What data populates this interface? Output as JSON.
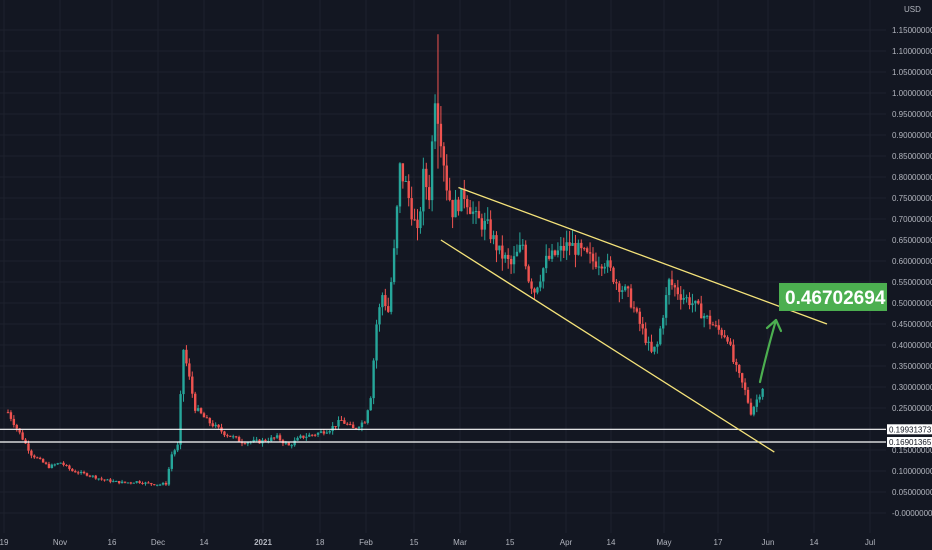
{
  "chart_data": {
    "type": "candlestick",
    "currency": "USD",
    "y_ticks": [
      "1.15000000",
      "1.10000000",
      "1.05000000",
      "1.00000000",
      "0.95000000",
      "0.90000000",
      "0.85000000",
      "0.80000000",
      "0.75000000",
      "0.70000000",
      "0.65000000",
      "0.60000000",
      "0.55000000",
      "0.50000000",
      "0.45000000",
      "0.40000000",
      "0.35000000",
      "0.30000000",
      "0.25000000",
      "0.15000000",
      "0.10000000",
      "0.05000000",
      "-0.00000000"
    ],
    "x_ticks": [
      "19",
      "Nov",
      "16",
      "Dec",
      "14",
      "2021",
      "18",
      "Feb",
      "15",
      "Mar",
      "15",
      "Apr",
      "14",
      "May",
      "17",
      "Jun",
      "14",
      "Jul"
    ],
    "ylim": [
      -0.01,
      1.21
    ],
    "horizontal_levels": [
      {
        "value": 0.19931373,
        "label": "0.19931373"
      },
      {
        "value": 0.16901365,
        "label": "0.16901365"
      }
    ],
    "annotation": {
      "label": "0.46702694",
      "value": 0.46702694
    },
    "colors": {
      "up": "#26a69a",
      "down": "#ef5350",
      "trendline": "#f5e37a",
      "annotation": "#4caf50",
      "level": "#ffffff",
      "background": "#131722",
      "grid": "#1e222d"
    },
    "price_path": [
      [
        0,
        0.24
      ],
      [
        2,
        0.19
      ],
      [
        4,
        0.14
      ],
      [
        7,
        0.11
      ],
      [
        9,
        0.12
      ],
      [
        11,
        0.1
      ],
      [
        14,
        0.09
      ],
      [
        16,
        0.08
      ],
      [
        18,
        0.075
      ],
      [
        20,
        0.072
      ],
      [
        22,
        0.075
      ],
      [
        24,
        0.07
      ],
      [
        26,
        0.068
      ],
      [
        27,
        0.07
      ],
      [
        28,
        0.14
      ],
      [
        29,
        0.16
      ],
      [
        30,
        0.39
      ],
      [
        32,
        0.25
      ],
      [
        34,
        0.22
      ],
      [
        37,
        0.19
      ],
      [
        40,
        0.17
      ],
      [
        43,
        0.17
      ],
      [
        46,
        0.18
      ],
      [
        48,
        0.16
      ],
      [
        50,
        0.18
      ],
      [
        53,
        0.19
      ],
      [
        55,
        0.2
      ],
      [
        57,
        0.22
      ],
      [
        59,
        0.2
      ],
      [
        61,
        0.22
      ],
      [
        62,
        0.28
      ],
      [
        63,
        0.45
      ],
      [
        64,
        0.52
      ],
      [
        65,
        0.48
      ],
      [
        66,
        0.62
      ],
      [
        67,
        0.82
      ],
      [
        68,
        0.78
      ],
      [
        69,
        0.72
      ],
      [
        70,
        0.66
      ],
      [
        71,
        0.8
      ],
      [
        72,
        0.76
      ],
      [
        73,
        1.0
      ],
      [
        74,
        0.9
      ],
      [
        75,
        0.78
      ],
      [
        76,
        0.72
      ],
      [
        78,
        0.76
      ],
      [
        80,
        0.7
      ],
      [
        82,
        0.68
      ],
      [
        84,
        0.62
      ],
      [
        86,
        0.59
      ],
      [
        88,
        0.64
      ],
      [
        89,
        0.56
      ],
      [
        90,
        0.53
      ],
      [
        92,
        0.6
      ],
      [
        94,
        0.62
      ],
      [
        96,
        0.64
      ],
      [
        98,
        0.62
      ],
      [
        100,
        0.6
      ],
      [
        102,
        0.6
      ],
      [
        104,
        0.55
      ],
      [
        106,
        0.52
      ],
      [
        108,
        0.45
      ],
      [
        110,
        0.38
      ],
      [
        111,
        0.4
      ],
      [
        113,
        0.55
      ],
      [
        115,
        0.52
      ],
      [
        117,
        0.5
      ],
      [
        119,
        0.47
      ],
      [
        121,
        0.44
      ],
      [
        123,
        0.42
      ],
      [
        124,
        0.36
      ],
      [
        126,
        0.29
      ],
      [
        127,
        0.24
      ],
      [
        128,
        0.27
      ],
      [
        129,
        0.3
      ]
    ],
    "trendlines": [
      {
        "from": [
          77,
          0.775
        ],
        "to": [
          140,
          0.45
        ]
      },
      {
        "from": [
          74,
          0.65
        ],
        "to": [
          131,
          0.145
        ]
      }
    ]
  }
}
